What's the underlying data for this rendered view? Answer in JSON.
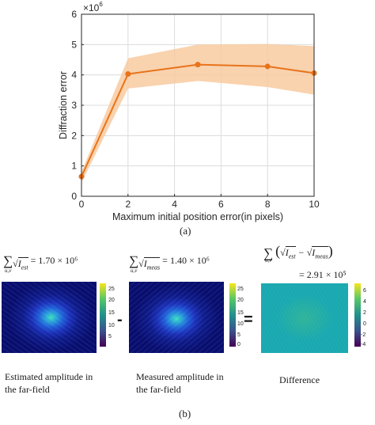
{
  "chart_data": {
    "type": "line",
    "x": [
      0,
      2,
      5,
      8,
      10
    ],
    "series": [
      {
        "values": [
          0.65,
          4.03,
          4.34,
          4.28,
          4.06
        ],
        "band_upper": [
          0.8,
          4.55,
          5.0,
          5.02,
          4.95
        ],
        "band_lower": [
          0.45,
          3.55,
          3.8,
          3.6,
          3.35
        ]
      }
    ],
    "xlabel": "Maximum initial position error(in pixels)",
    "ylabel": "Diffraction error",
    "y_multiplier": "×10",
    "y_exponent": "6",
    "xlim": [
      0,
      10
    ],
    "ylim": [
      0,
      6
    ],
    "xticks": [
      0,
      2,
      4,
      6,
      8,
      10
    ],
    "yticks": [
      0,
      1,
      2,
      3,
      4,
      5,
      6
    ],
    "grid": true,
    "line_color": "#e8731a",
    "band_color": "#f8caa0"
  },
  "caption_a": "(a)",
  "caption_b": "(b)",
  "panels": {
    "estimated": {
      "formula_lhs": "∑ √I",
      "formula_sub": "u,v",
      "formula_value": "= 1.70 × 10⁶",
      "label_line1": "Estimated amplitude in",
      "label_line2": "the far-field",
      "colorbar_ticks": [
        "25",
        "20",
        "15",
        "10",
        "5"
      ]
    },
    "measured": {
      "formula_value": "= 1.40 × 10⁶",
      "label_line1": "Measured amplitude in",
      "label_line2": "the far-field",
      "colorbar_ticks": [
        "25",
        "20",
        "15",
        "10",
        "5",
        "0"
      ]
    },
    "difference": {
      "formula_value": "= 2.91 × 10⁵",
      "label": "Difference",
      "colorbar_ticks": [
        "6",
        "4",
        "2",
        "0",
        "-2",
        "-4"
      ]
    },
    "minus_sign": "-",
    "equals_sign": "="
  }
}
